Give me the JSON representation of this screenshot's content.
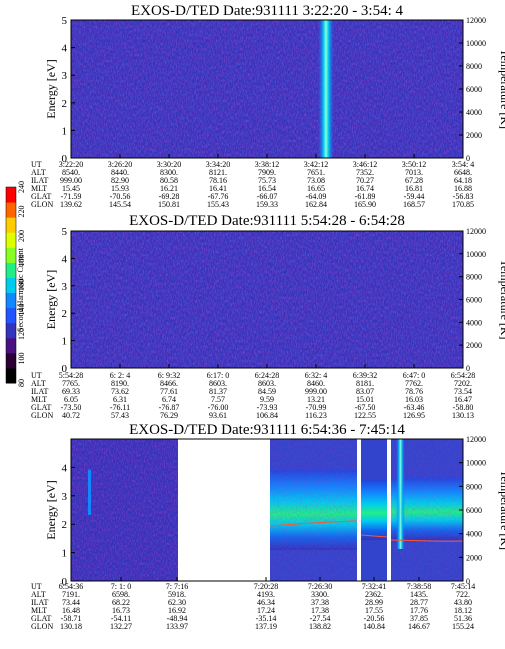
{
  "colorbar": {
    "label": "Second Harmonic Current",
    "ticks": [
      "80",
      "100",
      "120",
      "140",
      "160",
      "180",
      "200",
      "220",
      "240"
    ],
    "colors": [
      "#000000",
      "#2b0033",
      "#4a1080",
      "#3333bb",
      "#2255ff",
      "#1188ff",
      "#00ccee",
      "#22ee88",
      "#88ff22",
      "#ddff00",
      "#ffcc00",
      "#ff6600",
      "#ff0000"
    ]
  },
  "orbit_labels": [
    "UT",
    "ALT",
    "ILAT",
    "MLT",
    "GLAT",
    "GLON"
  ],
  "chart_data": [
    {
      "type": "heatmap",
      "title": "EXOS-D/TED   Date:931111   3:22:20 - 3:54: 4",
      "ylabel": "Energy [eV]",
      "y2label": "Temperature [K]",
      "ylim": [
        0,
        5
      ],
      "yticks": [
        "0",
        "1",
        "2",
        "3",
        "4",
        "5"
      ],
      "y2lim": [
        0,
        12000
      ],
      "y2ticks": [
        "0",
        "2000",
        "4000",
        "6000",
        "8000",
        "10000",
        "12000"
      ],
      "columns": [
        {
          "UT": "3:22:20",
          "ALT": "8540.",
          "ILAT": "999.00",
          "MLT": "15.45",
          "GLAT": "-71.59",
          "GLON": "139.62"
        },
        {
          "UT": "3:26:20",
          "ALT": "8440.",
          "ILAT": "82.90",
          "MLT": "15.93",
          "GLAT": "-70.56",
          "GLON": "145.54"
        },
        {
          "UT": "3:30:20",
          "ALT": "8300.",
          "ILAT": "80.58",
          "MLT": "16.21",
          "GLAT": "-69.28",
          "GLON": "150.81"
        },
        {
          "UT": "3:34:20",
          "ALT": "8121.",
          "ILAT": "78.16",
          "MLT": "16.41",
          "GLAT": "-67.76",
          "GLON": "155.43"
        },
        {
          "UT": "3:38:12",
          "ALT": "7909.",
          "ILAT": "75.73",
          "MLT": "16.54",
          "GLAT": "-66.07",
          "GLON": "159.33"
        },
        {
          "UT": "3:42:12",
          "ALT": "7651.",
          "ILAT": "73.08",
          "MLT": "16.65",
          "GLAT": "-64.09",
          "GLON": "162.84"
        },
        {
          "UT": "3:46:12",
          "ALT": "7352.",
          "ILAT": "70.27",
          "MLT": "16.74",
          "GLAT": "-61.89",
          "GLON": "165.90"
        },
        {
          "UT": "3:50:12",
          "ALT": "7013.",
          "ILAT": "67.28",
          "MLT": "16.81",
          "GLAT": "-59.44",
          "GLON": "168.57"
        },
        {
          "UT": "3:54: 4",
          "ALT": "6648.",
          "ILAT": "64.18",
          "MLT": "16.88",
          "GLAT": "-56.83",
          "GLON": "170.85"
        }
      ]
    },
    {
      "type": "heatmap",
      "title": "EXOS-D/TED   Date:931111   5:54:28 - 6:54:28",
      "ylabel": "Energy [eV]",
      "y2label": "Temperature [K]",
      "ylim": [
        0,
        5
      ],
      "yticks": [
        "0",
        "1",
        "2",
        "3",
        "4",
        "5"
      ],
      "y2lim": [
        0,
        12000
      ],
      "y2ticks": [
        "0",
        "2000",
        "4000",
        "6000",
        "8000",
        "10000",
        "12000"
      ],
      "columns": [
        {
          "UT": "5:54:28",
          "ALT": "7765.",
          "ILAT": "69.33",
          "MLT": "6.05",
          "GLAT": "-73.50",
          "GLON": "40.72"
        },
        {
          "UT": "6: 2: 4",
          "ALT": "8190.",
          "ILAT": "73.62",
          "MLT": "6.31",
          "GLAT": "-76.11",
          "GLON": "57.43"
        },
        {
          "UT": "6: 9:32",
          "ALT": "8466.",
          "ILAT": "77.61",
          "MLT": "6.74",
          "GLAT": "-76.87",
          "GLON": "76.29"
        },
        {
          "UT": "6:17: 0",
          "ALT": "8603.",
          "ILAT": "81.37",
          "MLT": "7.57",
          "GLAT": "-76.00",
          "GLON": "93.61"
        },
        {
          "UT": "6:24:28",
          "ALT": "8603.",
          "ILAT": "84.59",
          "MLT": "9.59",
          "GLAT": "-73.93",
          "GLON": "106.84"
        },
        {
          "UT": "6:32: 4",
          "ALT": "8460.",
          "ILAT": "999.00",
          "MLT": "13.21",
          "GLAT": "-70.99",
          "GLON": "116.23"
        },
        {
          "UT": "6:39:32",
          "ALT": "8181.",
          "ILAT": "83.07",
          "MLT": "15.01",
          "GLAT": "-67.50",
          "GLON": "122.55"
        },
        {
          "UT": "6:47: 0",
          "ALT": "7762.",
          "ILAT": "78.76",
          "MLT": "16.03",
          "GLAT": "-63.46",
          "GLON": "126.95"
        },
        {
          "UT": "6:54:28",
          "ALT": "7202.",
          "ILAT": "73.54",
          "MLT": "16.47",
          "GLAT": "-58.80",
          "GLON": "130.13"
        }
      ]
    },
    {
      "type": "heatmap",
      "title": "EXOS-D/TED   Date:931111   6:54:36 - 7:45:14",
      "ylabel": "Energy [eV]",
      "y2label": "Temperature [K]",
      "ylim": [
        0,
        5
      ],
      "yticks": [
        "0",
        "1",
        "2",
        "3",
        "4"
      ],
      "y2lim": [
        0,
        12000
      ],
      "y2ticks": [
        "0",
        "2000",
        "4000",
        "6000",
        "8000",
        "10000",
        "12000"
      ],
      "columns": [
        {
          "UT": "6:54:36",
          "ALT": "7191.",
          "ILAT": "73.44",
          "MLT": "16.48",
          "GLAT": "-58.71",
          "GLON": "130.18"
        },
        {
          "UT": "7: 1: 0",
          "ALT": "6598.",
          "ILAT": "68.22",
          "MLT": "16.73",
          "GLAT": "-54.11",
          "GLON": "132.27"
        },
        {
          "UT": "7: 7:16",
          "ALT": "5918.",
          "ILAT": "62.30",
          "MLT": "16.92",
          "GLAT": "-48.94",
          "GLON": "133.97"
        },
        {
          "UT": "7:20:28",
          "ALT": "4193.",
          "ILAT": "46.34",
          "MLT": "17.24",
          "GLAT": "-35.14",
          "GLON": "137.19"
        },
        {
          "UT": "7:26:30",
          "ALT": "3300.",
          "ILAT": "37.38",
          "MLT": "17.38",
          "GLAT": "-27.54",
          "GLON": "138.82"
        },
        {
          "UT": "7:32:41",
          "ALT": "2362.",
          "ILAT": "28.99",
          "MLT": "17.55",
          "GLAT": "-20.56",
          "GLON": "140.84"
        },
        {
          "UT": "7:38:58",
          "ALT": "1435.",
          "ILAT": "28.77",
          "MLT": "17.76",
          "GLAT": "37.85",
          "GLON": "146.67"
        },
        {
          "UT": "7:45:14",
          "ALT": "722.",
          "ILAT": "43.80",
          "MLT": "18.12",
          "GLAT": "51.36",
          "GLON": "155.24"
        }
      ]
    }
  ]
}
